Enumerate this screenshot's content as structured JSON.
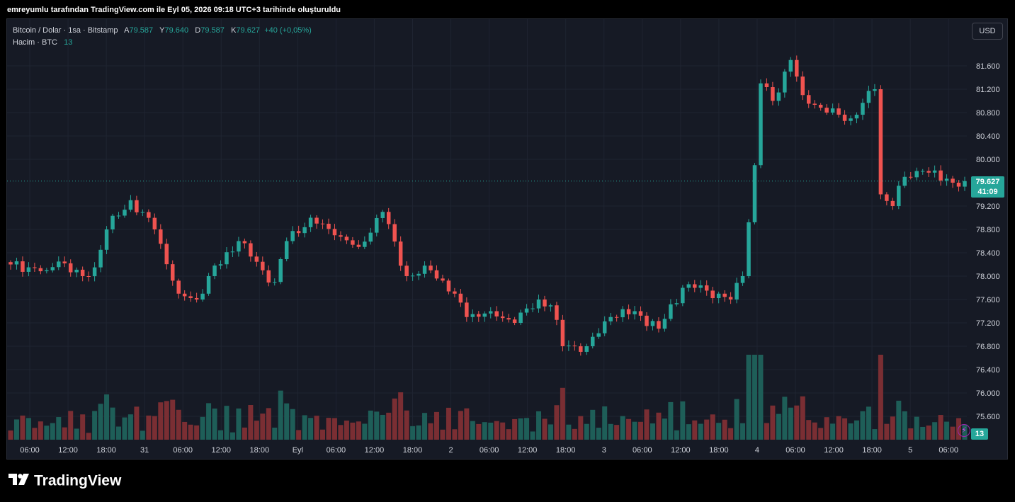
{
  "caption": "emreyumlu tarafından TradingView.com ile Eyl 05, 2026 09:18 UTC+3 tarihinde oluşturuldu",
  "legend": {
    "symbol": "Bitcoin / Dolar · 1sa · Bitstamp",
    "open_label": "A",
    "open": "79.587",
    "high_label": "Y",
    "high": "79.640",
    "low_label": "D",
    "low": "79.587",
    "close_label": "K",
    "close": "79.627",
    "change": "+40 (+0,05%)",
    "volume_label": "Hacim · BTC",
    "volume": "13"
  },
  "currency_button": "USD",
  "last_price": "79.627",
  "countdown": "41:09",
  "volume_tag": "13",
  "bolt_icon": "⚡",
  "brand": "TradingView",
  "colors": {
    "up": "#26a69a",
    "down": "#ef5350",
    "vol_up": "#1e5e58",
    "vol_down": "#7a2e33",
    "grid": "#1f2431",
    "text": "#d1d4dc"
  },
  "chart_data": {
    "type": "candlestick",
    "ylim": [
      75200,
      82400
    ],
    "y_ticks": [
      "81.600",
      "81.200",
      "80.800",
      "80.400",
      "80.000",
      "79.200",
      "78.800",
      "78.400",
      "78.000",
      "77.600",
      "77.200",
      "76.800",
      "76.400",
      "76.000",
      "75.600"
    ],
    "x_ticks": [
      "06:00",
      "12:00",
      "18:00",
      "31",
      "06:00",
      "12:00",
      "18:00",
      "Eyl",
      "06:00",
      "12:00",
      "18:00",
      "2",
      "06:00",
      "12:00",
      "18:00",
      "3",
      "06:00",
      "12:00",
      "18:00",
      "4",
      "06:00",
      "12:00",
      "18:00",
      "5",
      "06:00"
    ],
    "anchors": [
      [
        0,
        78200
      ],
      [
        6,
        78100
      ],
      [
        8,
        78250
      ],
      [
        12,
        78000
      ],
      [
        14,
        78150
      ],
      [
        16,
        78800
      ],
      [
        20,
        79300
      ],
      [
        24,
        78800
      ],
      [
        28,
        77700
      ],
      [
        31,
        77600
      ],
      [
        33,
        78000
      ],
      [
        38,
        78600
      ],
      [
        42,
        78100
      ],
      [
        44,
        77900
      ],
      [
        46,
        78600
      ],
      [
        50,
        79000
      ],
      [
        54,
        78700
      ],
      [
        58,
        78500
      ],
      [
        62,
        79100
      ],
      [
        66,
        78000
      ],
      [
        70,
        78100
      ],
      [
        74,
        77700
      ],
      [
        76,
        77300
      ],
      [
        80,
        77400
      ],
      [
        84,
        77200
      ],
      [
        88,
        77600
      ],
      [
        90,
        77500
      ],
      [
        92,
        76800
      ],
      [
        96,
        76800
      ],
      [
        100,
        77300
      ],
      [
        104,
        77400
      ],
      [
        108,
        77100
      ],
      [
        112,
        77800
      ],
      [
        114,
        77800
      ],
      [
        118,
        77700
      ],
      [
        120,
        77600
      ],
      [
        122,
        78000
      ],
      [
        124,
        79900
      ],
      [
        125,
        81300
      ],
      [
        127,
        81000
      ],
      [
        130,
        81700
      ],
      [
        132,
        81100
      ],
      [
        136,
        80800
      ],
      [
        140,
        80700
      ],
      [
        144,
        81200
      ],
      [
        145,
        79400
      ],
      [
        147,
        79200
      ],
      [
        149,
        79700
      ],
      [
        152,
        79800
      ],
      [
        157,
        79600
      ],
      [
        159,
        79627
      ]
    ]
  }
}
